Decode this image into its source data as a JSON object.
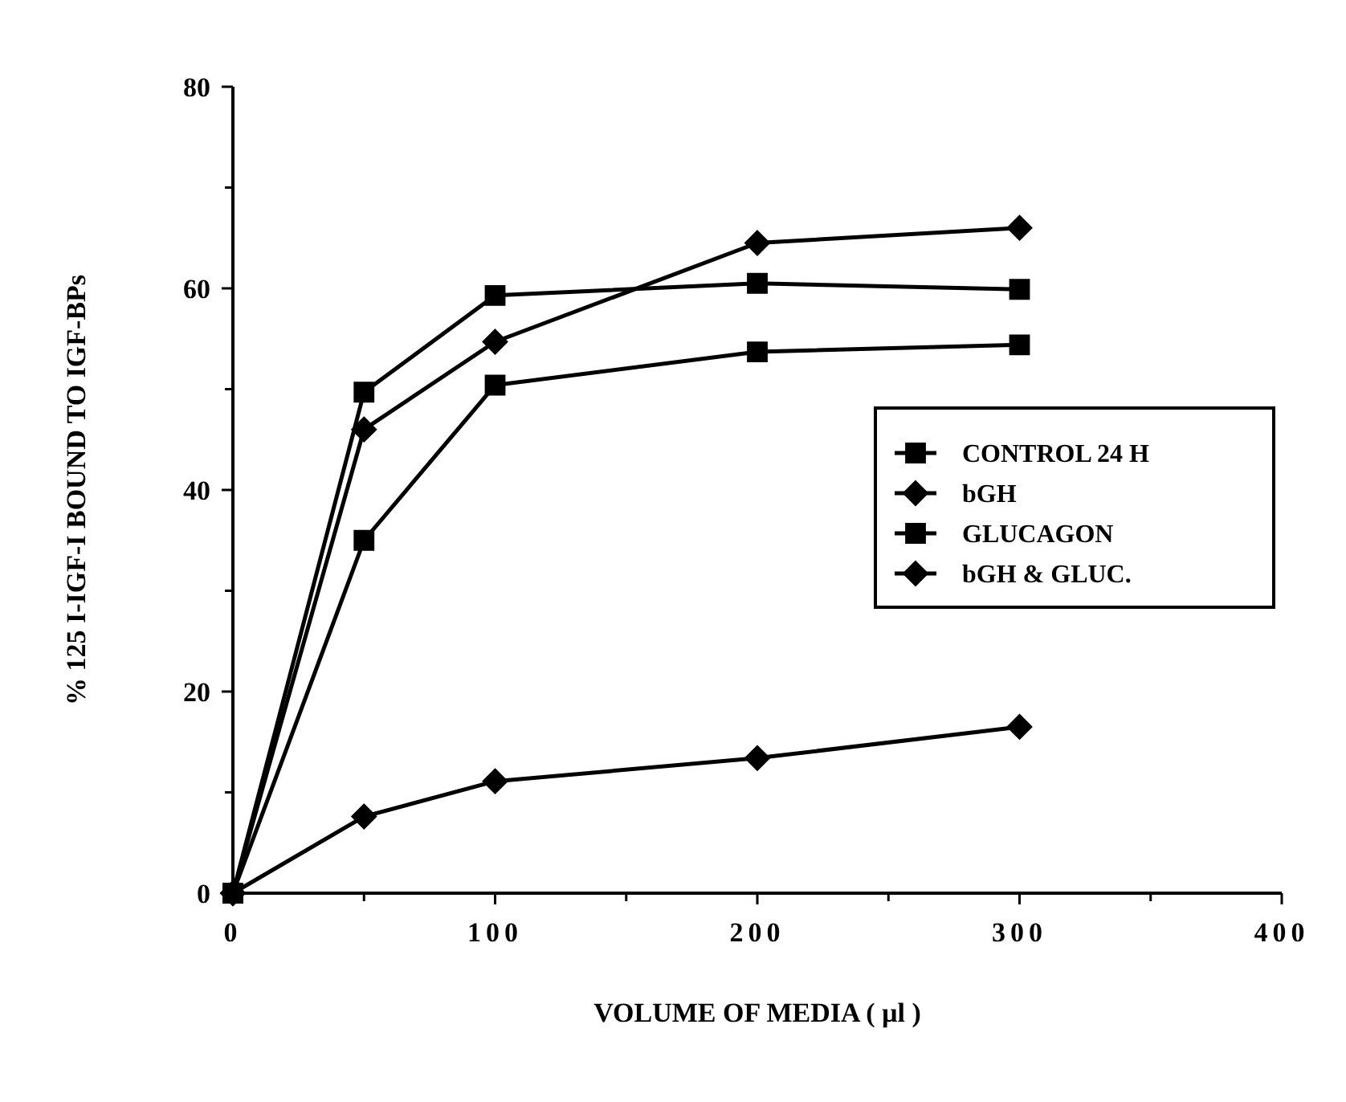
{
  "chart_data": {
    "type": "line",
    "xlabel": "VOLUME OF MEDIA ( µl )",
    "ylabel": "% 125 I-IGF-I BOUND TO IGF-BPs",
    "xlim": [
      0,
      400
    ],
    "xticks": [
      0,
      {
        "value": 50,
        "label": null
      },
      100,
      {
        "value": 150,
        "label": null
      },
      200,
      {
        "value": 250,
        "label": null
      },
      300,
      {
        "value": 350,
        "label": null
      },
      400
    ],
    "ylim": [
      0,
      80
    ],
    "yticks": [
      0,
      {
        "value": 10,
        "label": null
      },
      20,
      {
        "value": 30,
        "label": null
      },
      40,
      {
        "value": 50,
        "label": null
      },
      60,
      {
        "value": 70,
        "label": null
      },
      80
    ],
    "x": [
      0,
      50,
      100,
      200,
      300
    ],
    "grid": false,
    "legend": "right",
    "line_style": "solid",
    "series": [
      {
        "name": "CONTROL 24 H",
        "color": "#000000",
        "marker": "square",
        "values": [
          0,
          35,
          50.4,
          53.7,
          54.4
        ]
      },
      {
        "name": "bGH",
        "color": "#000000",
        "marker": "diamond",
        "values": [
          0,
          7.6,
          11.1,
          13.4,
          16.5
        ]
      },
      {
        "name": "GLUCAGON",
        "color": "#000000",
        "marker": "square",
        "values": [
          0,
          49.7,
          59.3,
          60.5,
          59.9
        ]
      },
      {
        "name": "bGH & GLUC.",
        "color": "#000000",
        "marker": "diamond",
        "values": [
          0,
          46,
          54.7,
          64.5,
          66
        ]
      }
    ]
  }
}
